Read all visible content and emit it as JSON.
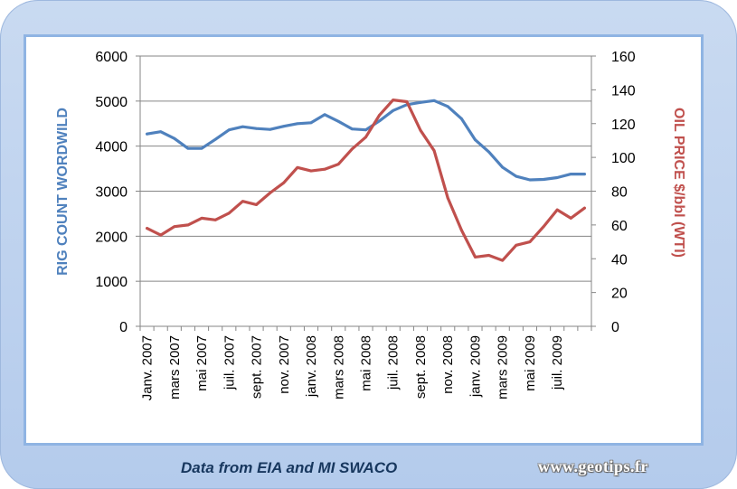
{
  "chart_data": {
    "type": "line",
    "title": "",
    "ylabel_left": "RIG COUNT WORDWILD",
    "ylabel_right": "OIL PRICE $/bbl (WTI)",
    "ylim_left": [
      0,
      6000
    ],
    "yticks_left": [
      "0",
      "1000",
      "2000",
      "3000",
      "4000",
      "5000",
      "6000"
    ],
    "ylim_right": [
      0,
      160
    ],
    "yticks_right": [
      "0",
      "20",
      "40",
      "60",
      "80",
      "100",
      "120",
      "140",
      "160"
    ],
    "x_tick_labels": [
      "Janv. 2007",
      "mars 2007",
      "mai 2007",
      "juil. 2007",
      "sept. 2007",
      "nov. 2007",
      "janv. 2008",
      "mars 2008",
      "mai 2008",
      "juil. 2008",
      "sept. 2008",
      "nov. 2008",
      "janv. 2009",
      "mars 2009",
      "mai 2009",
      "juil. 2009"
    ],
    "months": [
      "2007-01",
      "2007-02",
      "2007-03",
      "2007-04",
      "2007-05",
      "2007-06",
      "2007-07",
      "2007-08",
      "2007-09",
      "2007-10",
      "2007-11",
      "2007-12",
      "2008-01",
      "2008-02",
      "2008-03",
      "2008-04",
      "2008-05",
      "2008-06",
      "2008-07",
      "2008-08",
      "2008-09",
      "2008-10",
      "2008-11",
      "2008-12",
      "2009-01",
      "2009-02",
      "2009-03",
      "2009-04",
      "2009-05",
      "2009-06",
      "2009-07",
      "2009-08",
      "2009-09"
    ],
    "series": [
      {
        "axis": "left",
        "color": "#4f81bd",
        "values": [
          4270,
          4320,
          4170,
          3950,
          3950,
          4150,
          4360,
          4430,
          4390,
          4370,
          4440,
          4500,
          4520,
          4700,
          4550,
          4380,
          4360,
          4560,
          4790,
          4920,
          4970,
          5010,
          4880,
          4610,
          4140,
          3870,
          3530,
          3330,
          3250,
          3260,
          3300,
          3380,
          3380
        ]
      },
      {
        "axis": "right",
        "color": "#c0504d",
        "values": [
          58,
          54,
          59,
          60,
          64,
          63,
          67,
          74,
          72,
          79,
          85,
          94,
          92,
          93,
          96,
          105,
          112,
          125,
          134,
          133,
          116,
          104,
          76,
          57,
          41,
          42,
          39,
          48,
          50,
          59,
          69,
          64,
          70
        ]
      }
    ],
    "grid": true
  },
  "footer": {
    "source": "Data from EIA and MI SWACO",
    "site": "www.geotips.fr"
  }
}
